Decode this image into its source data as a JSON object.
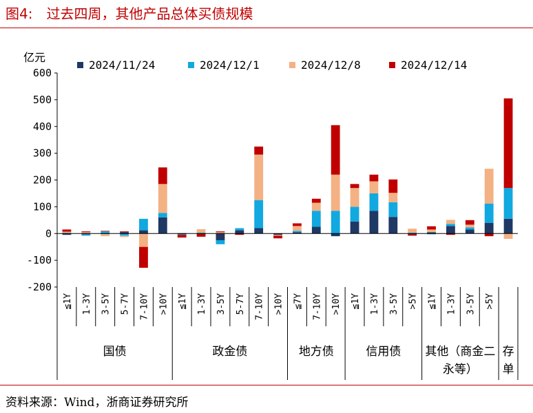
{
  "figure": {
    "title": "图4:　过去四周，其他产品总体买债规模",
    "source": "资料来源：Wind，浙商证券研究所"
  },
  "chart_data": {
    "type": "bar",
    "stacked": true,
    "ylabel": "亿元",
    "ylim": [
      -200,
      600
    ],
    "yticks": [
      -200,
      -100,
      0,
      100,
      200,
      300,
      400,
      500,
      600
    ],
    "legend_position": "top",
    "categories": [
      "≦1Y",
      "1-3Y",
      "3-5Y",
      "5-7Y",
      "7-10Y",
      ">10Y",
      "≦1Y",
      "1-3Y",
      "3-5Y",
      "5-7Y",
      "7-10Y",
      ">10Y",
      "≦7Y",
      "7-10Y",
      ">10Y",
      "≦1Y",
      "1-3Y",
      "3-5Y",
      ">5Y",
      "≦1Y",
      "1-3Y",
      "3-5Y",
      ">5Y",
      ""
    ],
    "groups": [
      {
        "label": "国债",
        "count": 6
      },
      {
        "label": "政金债",
        "count": 6
      },
      {
        "label": "地方债",
        "count": 3
      },
      {
        "label": "信用债",
        "count": 4
      },
      {
        "label": "其他（商金二永等）",
        "count": 4
      },
      {
        "label": "存单",
        "count": 1
      }
    ],
    "series": [
      {
        "name": "2024/11/24",
        "color": "#1f3864",
        "values": [
          -5,
          -3,
          -2,
          5,
          12,
          60,
          -3,
          -2,
          -25,
          12,
          20,
          -5,
          5,
          25,
          -10,
          45,
          85,
          62,
          -3,
          5,
          28,
          15,
          40,
          55
        ]
      },
      {
        "name": "2024/12/1",
        "color": "#12a8e0",
        "values": [
          2,
          -5,
          8,
          -8,
          43,
          17,
          -2,
          3,
          -15,
          8,
          105,
          0,
          5,
          60,
          85,
          55,
          65,
          55,
          3,
          -3,
          8,
          8,
          72,
          115
        ]
      },
      {
        "name": "2024/12/8",
        "color": "#f4b183",
        "values": [
          5,
          5,
          -8,
          -5,
          -50,
          108,
          2,
          13,
          5,
          0,
          170,
          -3,
          18,
          30,
          135,
          70,
          45,
          35,
          15,
          10,
          15,
          10,
          130,
          -20
        ]
      },
      {
        "name": "2024/12/14",
        "color": "#c00000",
        "values": [
          8,
          3,
          2,
          3,
          -78,
          62,
          -10,
          -10,
          3,
          -5,
          30,
          -10,
          10,
          15,
          185,
          15,
          25,
          50,
          -5,
          12,
          -5,
          17,
          -10,
          335
        ]
      }
    ]
  }
}
